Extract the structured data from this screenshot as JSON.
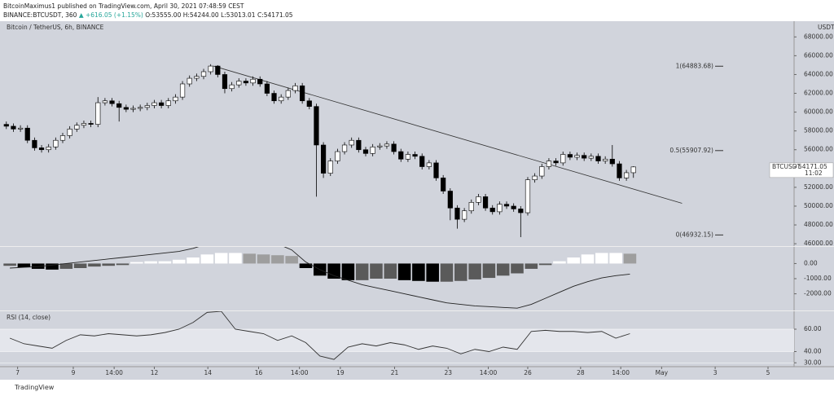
{
  "header": {
    "author": "BitcoinMaximus1 published on TradingView.com, April 30, 2021 07:48:59 CEST",
    "symbol": "BINANCE:BTCUSDT, 360",
    "ohlc_open": "O:53555.00",
    "ohlc_high": "H:54244.00",
    "ohlc_low": "L:53013.01",
    "ohlc_close": "C:54171.05",
    "change": "▲ +616.05 (+1.15%)",
    "footer": "TradingView"
  },
  "chart_data": [
    {
      "type": "candlestick",
      "title": "Bitcoin / TetherUS, 6h, BINANCE",
      "y_unit": "USDT",
      "open": [
        58700,
        58500,
        58200,
        58300,
        57000,
        56200,
        56000,
        56300,
        57000,
        57500,
        58200,
        58600,
        58800,
        58700,
        61000,
        61200,
        60900,
        60500,
        60300,
        60400,
        60500,
        60700,
        61000,
        60700,
        61200,
        61600,
        63000,
        63600,
        63800,
        64300,
        64900,
        64000,
        62500,
        62900,
        63300,
        63100,
        63500,
        63000,
        62000,
        61200,
        61600,
        62300,
        62800,
        61200,
        60600,
        56500,
        53500,
        54800,
        55800,
        56500,
        57000,
        56000,
        55600,
        56300,
        56400,
        56600,
        55800,
        55000,
        55500,
        55300,
        54200,
        54600,
        53000,
        51600,
        49800,
        48600,
        49500,
        50400,
        51000,
        49800,
        49400,
        50200,
        50000,
        49700,
        49300,
        52800,
        53200,
        54200,
        54800,
        54600,
        55500,
        55200,
        55400,
        55100,
        55300,
        54800,
        55000,
        54500,
        53000,
        53555
      ],
      "high": [
        59000,
        58800,
        58600,
        58600,
        57300,
        56500,
        56600,
        57300,
        57800,
        58500,
        58900,
        59100,
        59100,
        61600,
        61500,
        61500,
        61200,
        60800,
        60700,
        60800,
        61000,
        61300,
        61300,
        61500,
        61900,
        63300,
        63900,
        64100,
        64600,
        65100,
        65000,
        64300,
        63200,
        63600,
        63600,
        63800,
        63800,
        63300,
        62300,
        61900,
        62600,
        63100,
        63100,
        61500,
        60900,
        56800,
        55100,
        56100,
        56800,
        57300,
        57300,
        56300,
        56600,
        56700,
        56900,
        56900,
        56100,
        55800,
        55800,
        55600,
        54900,
        54900,
        53300,
        51900,
        50100,
        49800,
        50700,
        51300,
        51300,
        50100,
        50500,
        50500,
        50300,
        50000,
        53100,
        53500,
        54500,
        55100,
        55100,
        55800,
        55800,
        55700,
        55700,
        55600,
        55600,
        55300,
        56500,
        54800,
        53855,
        54244
      ],
      "low": [
        58200,
        57900,
        57900,
        56700,
        55900,
        55700,
        55700,
        56000,
        56700,
        57200,
        57900,
        58300,
        58400,
        58400,
        60700,
        60600,
        59000,
        60000,
        60000,
        60100,
        60200,
        60400,
        60400,
        60400,
        60900,
        61300,
        62700,
        63300,
        63500,
        64000,
        63700,
        62000,
        62200,
        62600,
        62800,
        62800,
        62700,
        61700,
        60900,
        60900,
        61300,
        62000,
        60900,
        60300,
        51000,
        53000,
        53200,
        54500,
        55500,
        56200,
        55700,
        55300,
        55300,
        56000,
        56100,
        55500,
        54700,
        54700,
        55000,
        53900,
        53900,
        52700,
        51300,
        48500,
        47600,
        48300,
        49200,
        50100,
        49500,
        49100,
        49100,
        49700,
        49400,
        46700,
        49000,
        52500,
        52900,
        53900,
        54300,
        54300,
        54900,
        54900,
        54800,
        54800,
        54500,
        54500,
        54200,
        52700,
        52700,
        53013.01
      ],
      "close": [
        58500,
        58200,
        58300,
        57000,
        56200,
        56000,
        56300,
        57000,
        57500,
        58200,
        58600,
        58800,
        58700,
        61000,
        61200,
        60900,
        60500,
        60300,
        60400,
        60500,
        60700,
        61000,
        60700,
        61200,
        61600,
        63000,
        63600,
        63800,
        64300,
        64900,
        64000,
        62500,
        62900,
        63300,
        63100,
        63500,
        63000,
        62000,
        61200,
        61600,
        62300,
        62800,
        61200,
        60600,
        56500,
        53500,
        54800,
        55800,
        56500,
        57000,
        56000,
        55600,
        56300,
        56400,
        56600,
        55800,
        55000,
        55500,
        55300,
        54200,
        54600,
        53000,
        51600,
        49800,
        48600,
        49500,
        50400,
        51000,
        49800,
        49400,
        50200,
        50000,
        49700,
        49300,
        52800,
        53200,
        54200,
        54800,
        54600,
        55500,
        55200,
        55400,
        55100,
        55300,
        54800,
        55000,
        54500,
        53000,
        53555,
        54171.05
      ],
      "up_color": "#ffffff",
      "down_color": "#000000",
      "xlim": [
        -0.9,
        111.8
      ],
      "xticks": [
        {
          "value": 1.6,
          "label": "7"
        },
        {
          "value": 9.5,
          "label": "9"
        },
        {
          "value": 15.3,
          "label": "14:00"
        },
        {
          "value": 21.0,
          "label": "12"
        },
        {
          "value": 28.6,
          "label": "14"
        },
        {
          "value": 35.8,
          "label": "16"
        },
        {
          "value": 41.6,
          "label": "14:00"
        },
        {
          "value": 47.4,
          "label": "19"
        },
        {
          "value": 55.1,
          "label": "21"
        },
        {
          "value": 62.7,
          "label": "23"
        },
        {
          "value": 68.4,
          "label": "14:00"
        },
        {
          "value": 74.0,
          "label": "26"
        },
        {
          "value": 81.5,
          "label": "28"
        },
        {
          "value": 87.2,
          "label": "14:00"
        },
        {
          "value": 93.0,
          "label": "May"
        },
        {
          "value": 100.6,
          "label": "3"
        },
        {
          "value": 108.1,
          "label": "5"
        }
      ],
      "ylim": [
        45750,
        69500
      ],
      "yticks": [
        {
          "value": 46000,
          "label": "46000.00"
        },
        {
          "value": 48000,
          "label": "48000.00"
        },
        {
          "value": 50000,
          "label": "50000.00"
        },
        {
          "value": 52000,
          "label": "52000.00"
        },
        {
          "value": 54000,
          "label": "54000.00"
        },
        {
          "value": 56000,
          "label": "56000.00"
        },
        {
          "value": 58000,
          "label": "58000.00"
        },
        {
          "value": 60000,
          "label": "60000.00"
        },
        {
          "value": 62000,
          "label": "62000.00"
        },
        {
          "value": 64000,
          "label": "64000.00"
        },
        {
          "value": 66000,
          "label": "66000.00"
        },
        {
          "value": 68000,
          "label": "68000.00"
        }
      ],
      "trendline": {
        "x": [
          29.4,
          95.9
        ],
        "y": [
          64900,
          50300
        ]
      },
      "annotations": [
        {
          "label": "1(64883.68)",
          "value": 64883.68
        },
        {
          "label": "0.5(55907.92)",
          "value": 55907.92
        },
        {
          "label": "0(46932.15)",
          "value": 46932.15
        }
      ],
      "last_price": {
        "label": "BTCUSDT",
        "value": 54171.05,
        "countdown": "11:02"
      }
    },
    {
      "type": "histogram_line",
      "xlim": [
        -0.9,
        111.8
      ],
      "x": [
        0.5,
        2.5,
        4.5,
        6.5,
        8.5,
        10.5,
        12.5,
        14.5,
        16.5,
        18.5,
        20.5,
        22.5,
        24.5,
        26.5,
        28.5,
        30.5,
        32.5,
        34.5,
        36.5,
        38.5,
        40.5,
        42.5,
        44.5,
        46.5,
        48.5,
        50.5,
        52.5,
        54.5,
        56.5,
        58.5,
        60.5,
        62.5,
        64.5,
        66.5,
        68.5,
        70.5,
        72.5,
        74.5,
        76.5,
        78.5,
        80.5,
        82.5,
        84.5,
        86.5,
        88.5
      ],
      "values": [
        -150,
        -250,
        -350,
        -400,
        -350,
        -300,
        -200,
        -150,
        -100,
        100,
        150,
        150,
        250,
        400,
        600,
        700,
        700,
        650,
        600,
        550,
        500,
        -300,
        -800,
        -1000,
        -1100,
        -1100,
        -1000,
        -1000,
        -1100,
        -1150,
        -1200,
        -1200,
        -1150,
        -1050,
        -950,
        -800,
        -650,
        -350,
        -100,
        150,
        400,
        600,
        700,
        700,
        650
      ],
      "line": [
        -300,
        -250,
        -200,
        -100,
        0,
        100,
        200,
        300,
        400,
        500,
        600,
        700,
        800,
        1000,
        1300,
        1500,
        1600,
        1600,
        1500,
        1300,
        900,
        100,
        -400,
        -800,
        -1100,
        -1400,
        -1600,
        -1800,
        -2000,
        -2200,
        -2400,
        -2600,
        -2700,
        -2800,
        -2850,
        -2900,
        -2950,
        -2700,
        -2300,
        -1900,
        -1500,
        -1200,
        -950,
        -800,
        -700
      ],
      "ylim": [
        -3100,
        1100
      ],
      "yticks": [
        {
          "value": 0,
          "label": "0.00"
        },
        {
          "value": -1000,
          "label": "-1000.00"
        },
        {
          "value": -2000,
          "label": "-2000.00"
        }
      ]
    },
    {
      "type": "line",
      "title": "RSI (14, close)",
      "xlim": [
        -0.9,
        111.8
      ],
      "x": [
        0.5,
        2.5,
        4.5,
        6.5,
        8.5,
        10.5,
        12.5,
        14.5,
        16.5,
        18.5,
        20.5,
        22.5,
        24.5,
        26.5,
        28.5,
        30.5,
        32.5,
        34.5,
        36.5,
        38.5,
        40.5,
        42.5,
        44.5,
        46.5,
        48.5,
        50.5,
        52.5,
        54.5,
        56.5,
        58.5,
        60.5,
        62.5,
        64.5,
        66.5,
        68.5,
        70.5,
        72.5,
        74.5,
        76.5,
        78.5,
        80.5,
        82.5,
        84.5,
        86.5,
        88.5
      ],
      "values": [
        52,
        47,
        45,
        43,
        50,
        55,
        54,
        56,
        55,
        54,
        55,
        57,
        60,
        66,
        75,
        76,
        60,
        58,
        56,
        50,
        54,
        48,
        36,
        33,
        44,
        47,
        45,
        48,
        46,
        42,
        45,
        43,
        38,
        42,
        40,
        44,
        42,
        58,
        59,
        58,
        58,
        57,
        58,
        52,
        56
      ],
      "color": "#333333",
      "ylim": [
        28,
        76
      ],
      "yticks": [
        {
          "value": 60,
          "label": "60.00"
        },
        {
          "value": 40,
          "label": "40.00"
        },
        {
          "value": 30,
          "label": "30.00"
        }
      ]
    }
  ]
}
